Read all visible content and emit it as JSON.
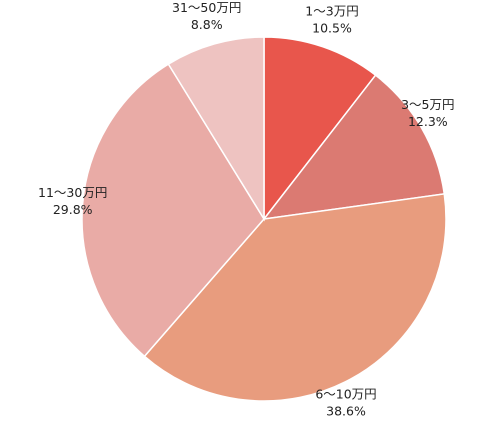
{
  "chart_data": {
    "type": "pie",
    "slices": [
      {
        "label": "1～3万円",
        "value": 10.5,
        "value_text": "10.5%",
        "color": "#e8564c"
      },
      {
        "label": "3～5万円",
        "value": 12.3,
        "value_text": "12.3%",
        "color": "#db7a72"
      },
      {
        "label": "6～10万円",
        "value": 38.6,
        "value_text": "38.6%",
        "color": "#e89c7e"
      },
      {
        "label": "11～30万円",
        "value": 29.8,
        "value_text": "29.8%",
        "color": "#e9aba6"
      },
      {
        "label": "31～50万円",
        "value": 8.8,
        "value_text": "8.8%",
        "color": "#eec3c1"
      }
    ],
    "start_angle": "12 o'clock",
    "direction": "clockwise",
    "slice_border_color": "#ffffff",
    "legend": "none"
  }
}
